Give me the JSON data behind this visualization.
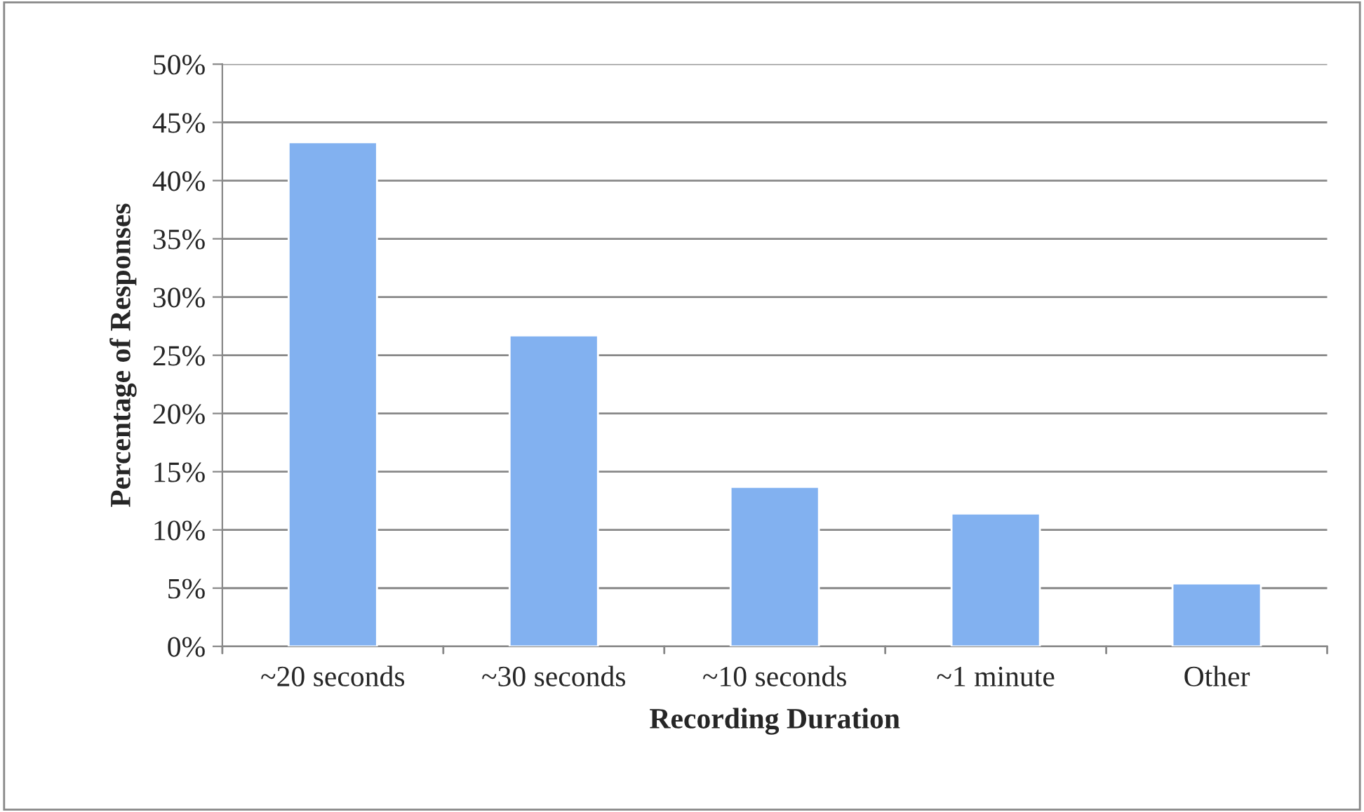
{
  "chart_data": {
    "type": "bar",
    "xlabel": "Recording Duration",
    "ylabel": "Percentage of Responses",
    "categories": [
      "~20 seconds",
      "~30 seconds",
      "~10 seconds",
      "~1 minute",
      "Other"
    ],
    "values": [
      43.3,
      26.7,
      13.7,
      11.4,
      5.4
    ],
    "color": "#82b1f0",
    "ylim": [
      0,
      50
    ],
    "yticks": [
      {
        "value": 0,
        "label": "0%"
      },
      {
        "value": 5,
        "label": "5%"
      },
      {
        "value": 10,
        "label": "10%"
      },
      {
        "value": 15,
        "label": "15%"
      },
      {
        "value": 20,
        "label": "20%"
      },
      {
        "value": 25,
        "label": "25%"
      },
      {
        "value": 30,
        "label": "30%"
      },
      {
        "value": 35,
        "label": "35%"
      },
      {
        "value": 40,
        "label": "40%"
      },
      {
        "value": 45,
        "label": "45%"
      },
      {
        "value": 50,
        "label": "50%"
      }
    ],
    "grid": "y",
    "legend": false
  }
}
